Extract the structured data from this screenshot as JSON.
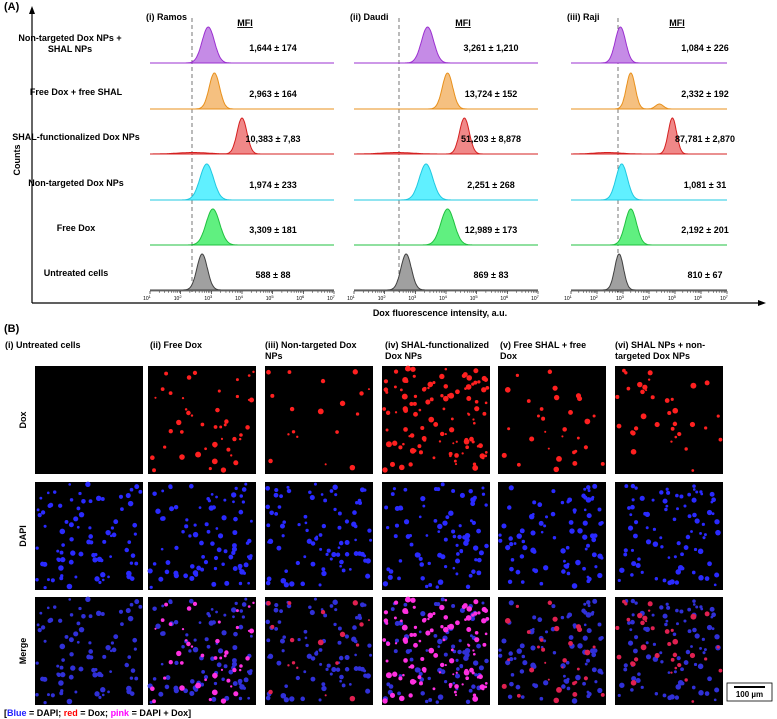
{
  "panel_a": {
    "label": "(A)",
    "y_axis_label": "Counts",
    "x_axis_label": "Dox fluorescence intensity, a.u.",
    "mfi_header": "MFI",
    "x_tick_base": "10",
    "x_tick_exponents": [
      "1",
      "2",
      "3",
      "4",
      "5",
      "6",
      "7"
    ],
    "rows": [
      "Non-targeted Dox NPs + SHAL NPs",
      "Free Dox + free SHAL",
      "SHAL-functionalized Dox NPs",
      "Non-targeted Dox NPs",
      "Free Dox",
      "Untreated cells"
    ],
    "cell_lines": [
      {
        "title": "(i) Ramos",
        "mfi": [
          "1,644 ± 174",
          "2,963 ± 164",
          "10,383 ± 7,83",
          "1,974 ± 233",
          "3,309 ± 181",
          "588 ± 88"
        ]
      },
      {
        "title": "(ii) Daudi",
        "mfi": [
          "3,261 ± 1,210",
          "13,724 ± 152",
          "51,203 ± 8,878",
          "2,251 ± 268",
          "12,989 ± 173",
          "869 ± 83"
        ]
      },
      {
        "title": "(iii) Raji",
        "mfi": [
          "1,084 ± 226",
          "2,332 ± 192",
          "87,781 ± 2,870",
          "1,081 ± 31",
          "2,192 ± 201",
          "810 ± 67"
        ]
      }
    ]
  },
  "panel_b": {
    "label": "(B)",
    "columns": [
      "(i) Untreated cells",
      "(ii) Free Dox",
      "(iii) Non-targeted Dox NPs",
      "(iv) SHAL-functionalized Dox NPs",
      "(v) Free SHAL + free Dox",
      "(vi) SHAL NPs + non-targeted Dox NPs"
    ],
    "rows": [
      "Dox",
      "DAPI",
      "Merge"
    ],
    "scale_bar": "100 µm",
    "legend": [
      "[",
      "Blue",
      " = DAPI; ",
      "red",
      " = Dox; ",
      "pink",
      " = DAPI + Dox]"
    ]
  }
}
